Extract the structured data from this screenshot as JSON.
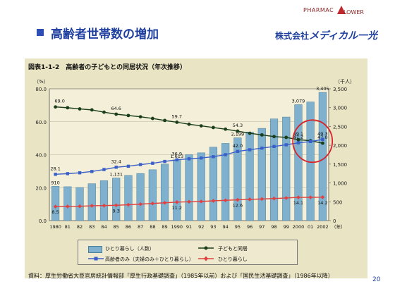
{
  "slide": {
    "title": "高齢者世帯数の増加",
    "page_number": "20",
    "logo_top": "PHARMAC",
    "logo_top2": "LOWER",
    "company": "株式会社",
    "brand": "メディカル一光"
  },
  "figure": {
    "title": "図表1-1-2　高齢者の子どもとの同居状況（年次推移）",
    "left_unit": "（%）",
    "right_unit": "（千人）",
    "source": "資料：厚生労働省大臣官房統計情報部「厚生行政基礎調査」（1985年以前）および「国民生活基礎調査」（1986年以降）"
  },
  "colors": {
    "bar": "#7fb1cf",
    "bar_edge": "#4a7f9f",
    "child": "#1a3d1a",
    "elderly_only": "#3a5fc8",
    "alone": "#e0413f",
    "highlight": "#d9232a"
  },
  "chart_data": {
    "type": "bar",
    "categories": [
      "1980",
      "81",
      "82",
      "83",
      "84",
      "85",
      "86",
      "87",
      "88",
      "89",
      "1990",
      "91",
      "92",
      "93",
      "94",
      "95",
      "96",
      "97",
      "98",
      "99",
      "2000",
      "01",
      "2002"
    ],
    "x_suffix": "（年）",
    "y_left_ticks": [
      "0.0",
      "20.0",
      "40.0",
      "60.0",
      "80.0"
    ],
    "y_left_range": [
      0,
      80
    ],
    "y_right_ticks": [
      "0",
      "500",
      "1,000",
      "1,500",
      "2,000",
      "2,500",
      "3,000",
      "3,500"
    ],
    "y_right_range": [
      0,
      3500
    ],
    "bars": {
      "name": "ひとり暮らし（人数）",
      "axis": "right",
      "values": [
        910,
        900,
        880,
        980,
        1060,
        1131,
        1200,
        1250,
        1350,
        1500,
        1613,
        1750,
        1800,
        1950,
        2050,
        2199,
        2350,
        2450,
        2700,
        2750,
        3079,
        3150,
        3405
      ]
    },
    "series": [
      {
        "name": "子どもと同居",
        "axis": "left",
        "values": [
          69.0,
          68.5,
          67.8,
          67.2,
          65.8,
          64.6,
          63.8,
          63.0,
          62.0,
          60.8,
          59.7,
          58.5,
          57.5,
          56.5,
          55.5,
          54.3,
          53.0,
          52.0,
          51.0,
          50.5,
          49.1,
          48.5,
          47.0
        ],
        "labels": {
          "0": "69.0",
          "5": "64.6",
          "10": "59.7",
          "15": "54.3",
          "20": "49.1",
          "22": "47.0"
        }
      },
      {
        "name": "高齢者のみ（夫婦のみ＋ひとり暮らし）",
        "axis": "left",
        "values": [
          28.1,
          28.5,
          29.0,
          29.8,
          31.0,
          32.4,
          33.0,
          34.0,
          34.8,
          35.9,
          36.9,
          37.5,
          38.0,
          38.8,
          40.0,
          42.0,
          43.0,
          44.0,
          45.0,
          46.0,
          47.2,
          48.0,
          49.3
        ],
        "labels": {
          "0": "28.1",
          "5": "32.4",
          "10": "36.9",
          "15": "42.0",
          "20": "47.2",
          "22": "49.3"
        }
      },
      {
        "name": "ひとり暮らし",
        "axis": "left",
        "values": [
          8.5,
          8.6,
          8.7,
          9.0,
          9.1,
          9.3,
          9.6,
          10.0,
          10.4,
          10.8,
          11.2,
          11.4,
          11.6,
          12.0,
          12.3,
          12.6,
          12.9,
          13.1,
          13.4,
          13.7,
          14.1,
          14.1,
          14.2
        ],
        "labels": {
          "0": "8.5",
          "5": "9.3",
          "10": "11.2",
          "15": "12.6",
          "20": "14.1",
          "22": "14.2"
        }
      }
    ],
    "bar_labels": {
      "0": "910",
      "5": "1,131",
      "10": "1,613",
      "15": "2,199",
      "20": "3,079",
      "22": "3,405"
    },
    "highlight": "red circle around the 2000–2002 values"
  }
}
